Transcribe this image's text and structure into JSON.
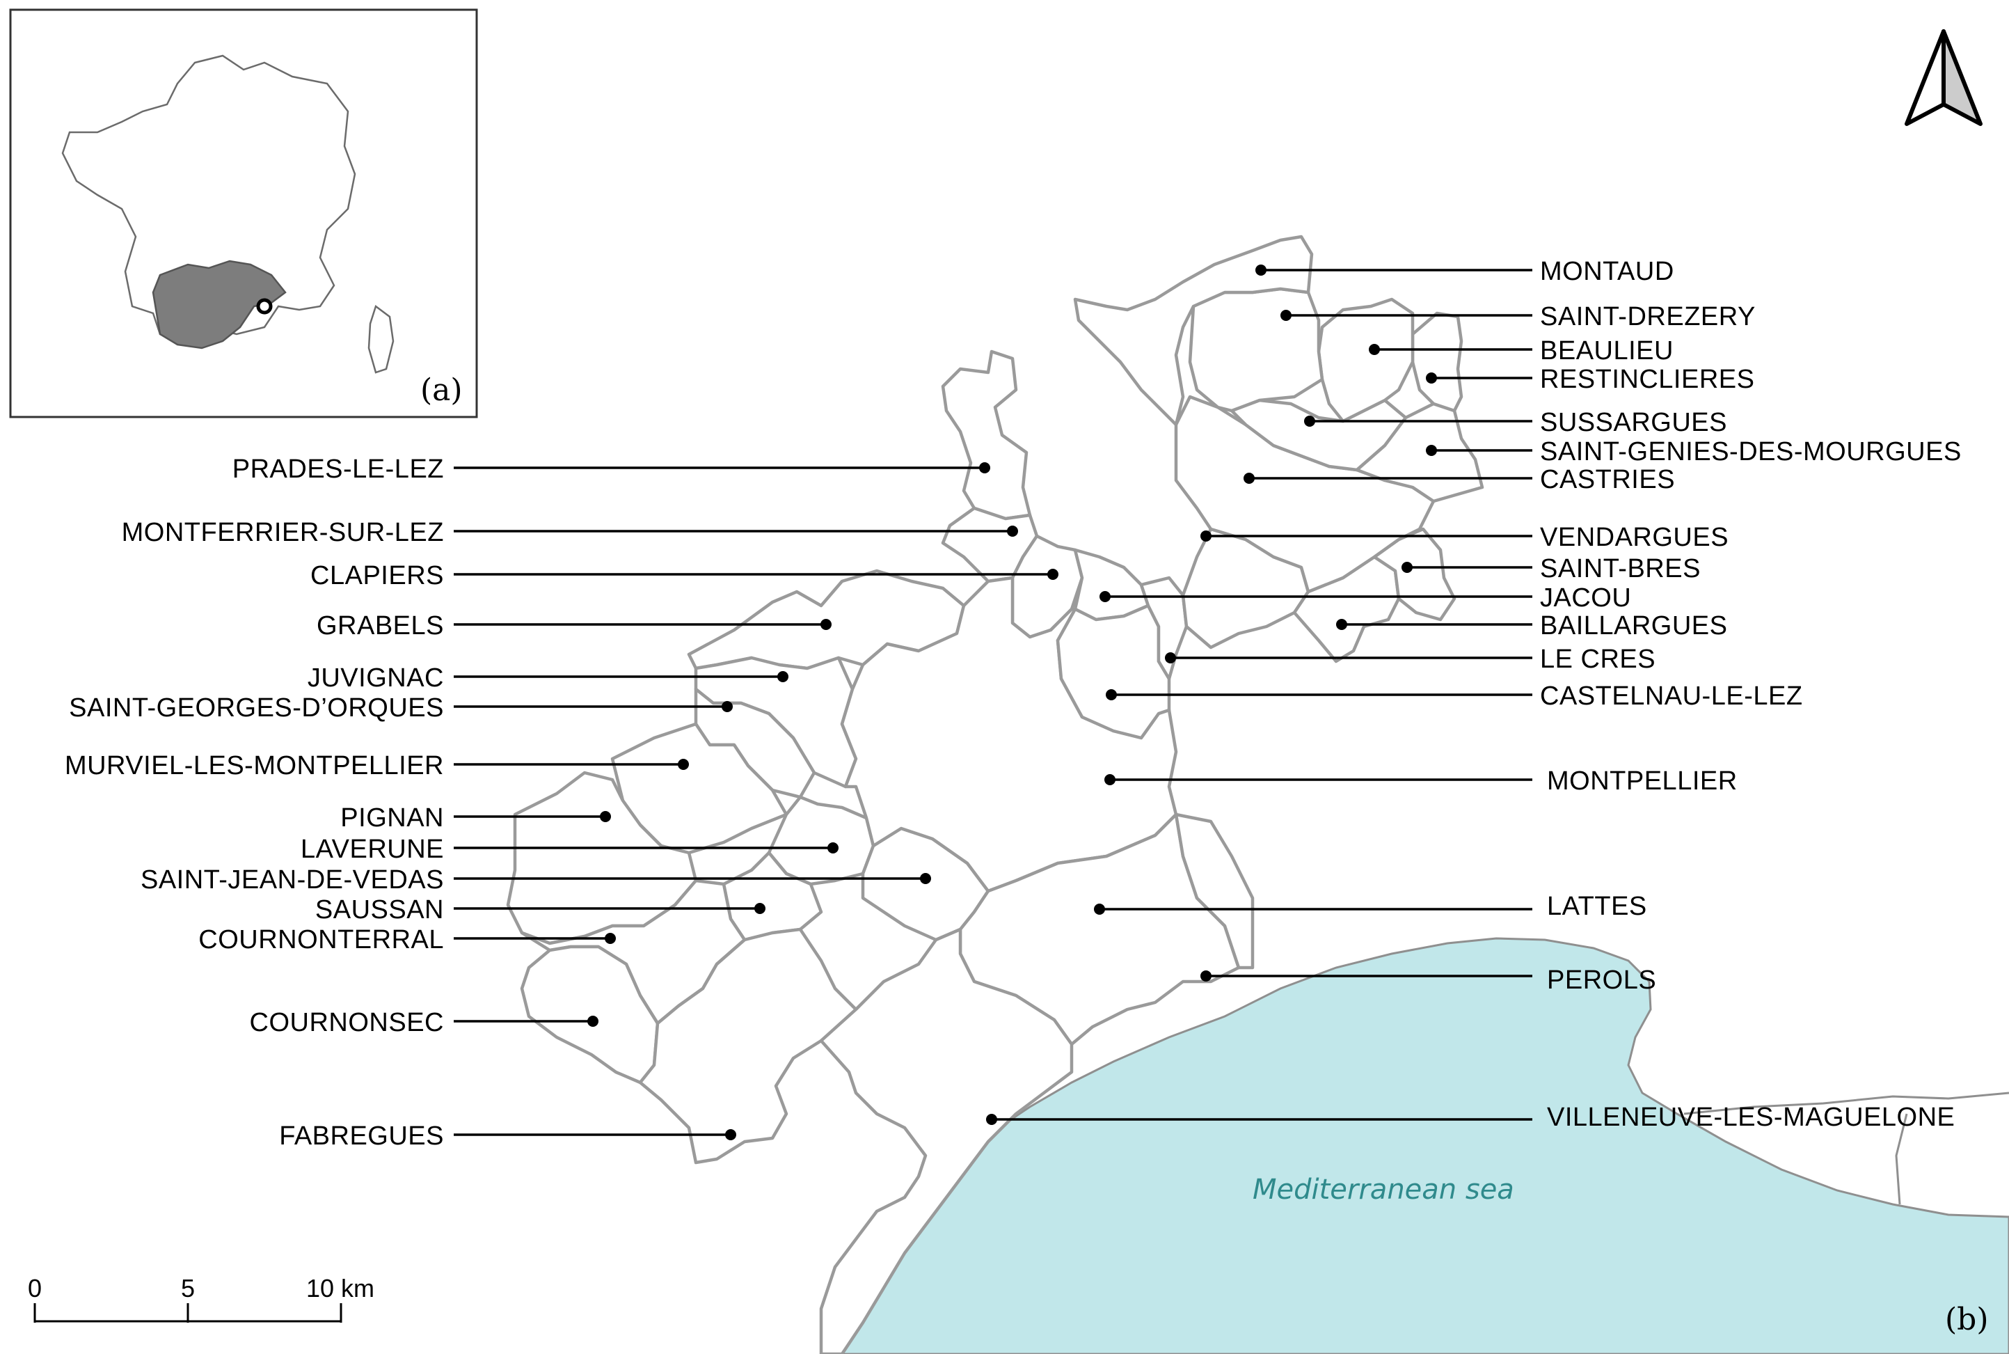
{
  "inset": {
    "panel_label": "(a)"
  },
  "main": {
    "panel_label": "(b)",
    "sea_label": "Mediterranean sea"
  },
  "scale_bar": {
    "ticks": [
      "0",
      "5",
      "10 km"
    ]
  },
  "north_arrow": {
    "icon": "north-arrow-icon"
  },
  "colors": {
    "sea": "#c1e7ea",
    "boundary": "#9a9a9a",
    "occitanie_region": "#7d7d7d",
    "sea_label": "#2f8a8c"
  },
  "communes_left": [
    "PRADES-LE-LEZ",
    "MONTFERRIER-SUR-LEZ",
    "CLAPIERS",
    "GRABELS",
    "JUVIGNAC",
    "SAINT-GEORGES-D’ORQUES",
    "MURVIEL-LES-MONTPELLIER",
    "PIGNAN",
    "LAVERUNE",
    "SAINT-JEAN-DE-VEDAS",
    "SAUSSAN",
    "COURNONTERRAL",
    "COURNONSEC",
    "FABREGUES"
  ],
  "communes_right": [
    "MONTAUD",
    "SAINT-DREZERY",
    "BEAULIEU",
    "RESTINCLIERES",
    "SUSSARGUES",
    "SAINT-GENIES-DES-MOURGUES",
    "CASTRIES",
    "VENDARGUES",
    "SAINT-BRES",
    "JACOU",
    "BAILLARGUES",
    "LE CRES",
    "CASTELNAU-LE-LEZ",
    "MONTPELLIER",
    "LATTES",
    "PEROLS",
    "VILLENEUVE-LES-MAGUELONE"
  ]
}
